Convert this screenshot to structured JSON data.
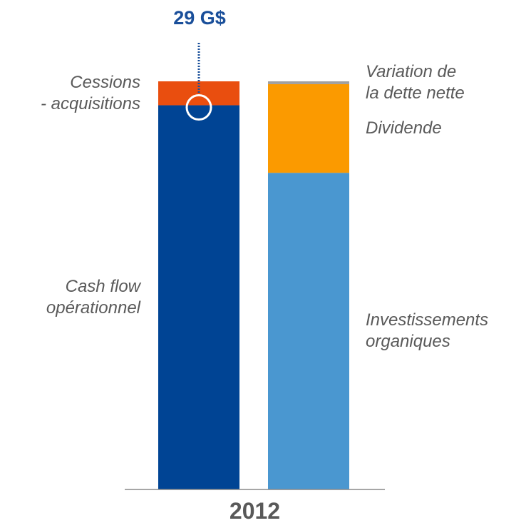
{
  "chart_data": {
    "type": "bar",
    "stacked": true,
    "categories": [
      null,
      null
    ],
    "xlabel": "2012",
    "total_label": "29 G$",
    "ylim": [
      0,
      29
    ],
    "series": [
      {
        "name": "Cash flow\nopérationnel",
        "color": "#004494",
        "values": [
          27.3,
          null
        ]
      },
      {
        "name": "Cessions\n- acquisitions",
        "color": "#e94e0f",
        "values": [
          1.7,
          null
        ]
      },
      {
        "name": "Investissements\norganiques",
        "color": "#4a97d0",
        "values": [
          null,
          22.5
        ]
      },
      {
        "name": "Dividende",
        "color": "#fb9a00",
        "values": [
          null,
          6.3
        ]
      },
      {
        "name": "Variation de\nla dette nette",
        "color": "#a0a0a0",
        "values": [
          null,
          0.2
        ]
      }
    ]
  }
}
